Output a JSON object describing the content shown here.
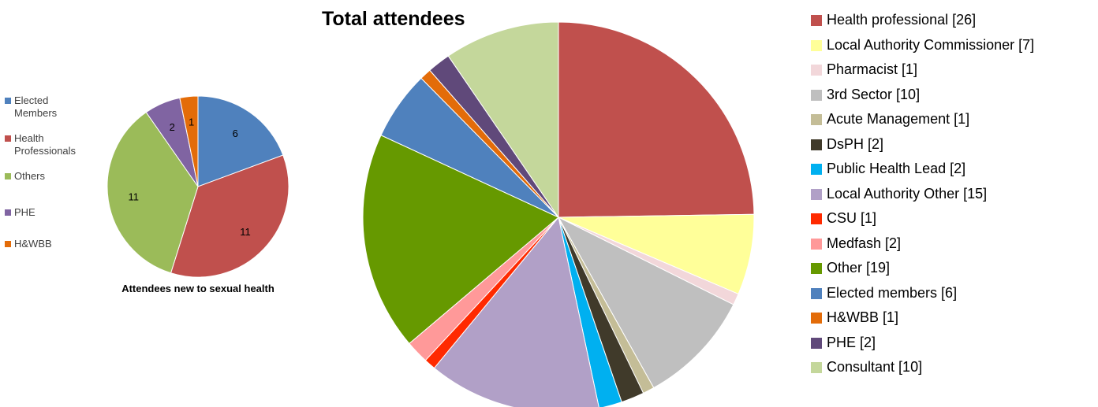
{
  "chart_data": [
    {
      "type": "pie",
      "title": "",
      "caption": "Attendees new to sexual health",
      "legend_position": "left",
      "slices": [
        {
          "name": "Elected Members",
          "value": 6,
          "color": "#4F81BD",
          "label": "6"
        },
        {
          "name": "Health Professionals",
          "value": 11,
          "color": "#C0504D",
          "label": "11"
        },
        {
          "name": "Others",
          "value": 11,
          "color": "#9BBB59",
          "label": "11"
        },
        {
          "name": "PHE",
          "value": 2,
          "color": "#8064A2",
          "label": "2"
        },
        {
          "name": "H&WBB",
          "value": 1,
          "color": "#E36C09",
          "label": "1"
        }
      ]
    },
    {
      "type": "pie",
      "title": "Total attendees",
      "legend_position": "right",
      "slices": [
        {
          "name": "Health professional",
          "value": 26,
          "color": "#C0504D",
          "legend": "Health professional  [26]"
        },
        {
          "name": "Local Authority Commissioner",
          "value": 7,
          "color": "#FFFF99",
          "legend": "Local Authority Commissioner  [7]"
        },
        {
          "name": "Pharmacist",
          "value": 1,
          "color": "#F2D7DA",
          "legend": "Pharmacist  [1]"
        },
        {
          "name": "3rd Sector",
          "value": 10,
          "color": "#BFBFBF",
          "legend": "3rd Sector  [10]"
        },
        {
          "name": "Acute Management",
          "value": 1,
          "color": "#C4BD97",
          "legend": "Acute Management  [1]"
        },
        {
          "name": "DsPH",
          "value": 2,
          "color": "#403A2A",
          "legend": "DsPH  [2]"
        },
        {
          "name": "Public Health Lead",
          "value": 2,
          "color": "#00B0F0",
          "legend": "Public Health Lead  [2]"
        },
        {
          "name": "Local Authority Other",
          "value": 15,
          "color": "#B1A0C7",
          "legend": "Local Authority Other  [15]"
        },
        {
          "name": "CSU",
          "value": 1,
          "color": "#FF2A00",
          "legend": "CSU  [1]"
        },
        {
          "name": "Medfash",
          "value": 2,
          "color": "#FF9999",
          "legend": "Medfash  [2]"
        },
        {
          "name": "Other",
          "value": 19,
          "color": "#669900",
          "legend": "Other  [19]"
        },
        {
          "name": "Elected members",
          "value": 6,
          "color": "#4F81BD",
          "legend": "Elected members  [6]"
        },
        {
          "name": "H&WBB",
          "value": 1,
          "color": "#E36C09",
          "legend": "H&WBB  [1]"
        },
        {
          "name": "PHE",
          "value": 2,
          "color": "#60497A",
          "legend": "PHE  [2]"
        },
        {
          "name": "Consultant",
          "value": 10,
          "color": "#C4D79B",
          "legend": "Consultant  [10]"
        }
      ]
    }
  ]
}
